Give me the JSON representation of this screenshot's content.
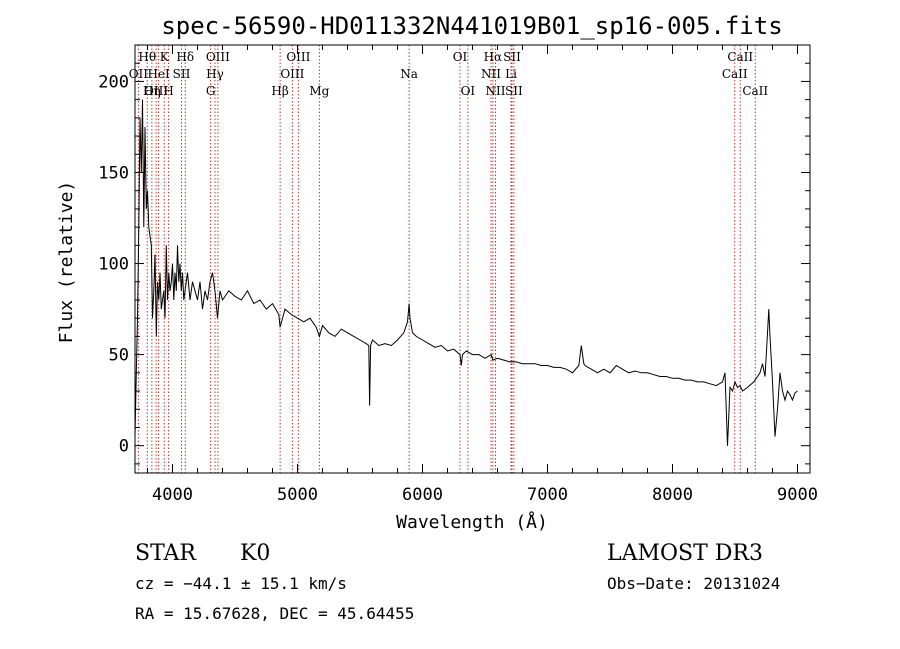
{
  "chart_data": {
    "type": "line",
    "title": "spec-56590-HD011332N441019B01_sp16-005.fits",
    "xlabel": "Wavelength (Å)",
    "ylabel": "Flux (relative)",
    "xlim": [
      3700,
      9100
    ],
    "ylim": [
      -15,
      220
    ],
    "x_ticks": [
      4000,
      5000,
      6000,
      7000,
      8000,
      9000
    ],
    "y_ticks": [
      0,
      50,
      100,
      150,
      200
    ],
    "series": [
      {
        "name": "spectrum",
        "x": [
          3700,
          3710,
          3720,
          3730,
          3740,
          3750,
          3760,
          3770,
          3780,
          3790,
          3800,
          3810,
          3820,
          3830,
          3840,
          3850,
          3860,
          3870,
          3880,
          3890,
          3900,
          3910,
          3920,
          3930,
          3940,
          3950,
          3960,
          3970,
          3980,
          3990,
          4000,
          4010,
          4020,
          4030,
          4040,
          4050,
          4060,
          4070,
          4080,
          4090,
          4100,
          4120,
          4140,
          4160,
          4180,
          4200,
          4220,
          4240,
          4260,
          4280,
          4300,
          4320,
          4340,
          4360,
          4380,
          4400,
          4450,
          4500,
          4550,
          4600,
          4650,
          4700,
          4750,
          4800,
          4850,
          4861,
          4900,
          4950,
          5000,
          5050,
          5100,
          5150,
          5175,
          5200,
          5250,
          5300,
          5350,
          5400,
          5450,
          5500,
          5550,
          5570,
          5577,
          5585,
          5600,
          5650,
          5700,
          5750,
          5800,
          5850,
          5880,
          5893,
          5900,
          5920,
          5950,
          6000,
          6050,
          6100,
          6150,
          6200,
          6250,
          6300,
          6310,
          6320,
          6350,
          6400,
          6450,
          6500,
          6550,
          6563,
          6600,
          6650,
          6700,
          6750,
          6800,
          6850,
          6900,
          6950,
          7000,
          7050,
          7100,
          7150,
          7200,
          7250,
          7270,
          7290,
          7300,
          7350,
          7400,
          7450,
          7500,
          7550,
          7600,
          7650,
          7700,
          7750,
          7800,
          7850,
          7900,
          7950,
          8000,
          8050,
          8100,
          8150,
          8200,
          8250,
          8300,
          8350,
          8400,
          8420,
          8440,
          8460,
          8480,
          8500,
          8520,
          8540,
          8560,
          8600,
          8650,
          8700,
          8720,
          8740,
          8750,
          8770,
          8780,
          8800,
          8820,
          8840,
          8860,
          8880,
          8900,
          8920,
          8940,
          8960,
          8980,
          9000
        ],
        "y": [
          5,
          40,
          70,
          120,
          180,
          150,
          190,
          120,
          175,
          130,
          140,
          120,
          115,
          110,
          70,
          85,
          105,
          60,
          90,
          80,
          95,
          75,
          80,
          85,
          70,
          110,
          80,
          95,
          85,
          90,
          100,
          80,
          95,
          85,
          110,
          90,
          100,
          85,
          95,
          80,
          85,
          95,
          80,
          90,
          85,
          80,
          90,
          75,
          85,
          80,
          90,
          95,
          85,
          70,
          85,
          80,
          85,
          82,
          80,
          85,
          78,
          80,
          75,
          78,
          72,
          65,
          75,
          72,
          70,
          68,
          70,
          65,
          60,
          66,
          62,
          60,
          64,
          62,
          60,
          58,
          56,
          55,
          22,
          55,
          58,
          55,
          56,
          55,
          58,
          62,
          68,
          78,
          70,
          62,
          60,
          58,
          56,
          54,
          55,
          52,
          53,
          50,
          44,
          50,
          52,
          50,
          50,
          48,
          50,
          47,
          48,
          47,
          46,
          46,
          45,
          45,
          45,
          44,
          44,
          43,
          43,
          42,
          40,
          44,
          55,
          45,
          44,
          42,
          40,
          42,
          40,
          44,
          42,
          40,
          41,
          40,
          40,
          39,
          38,
          38,
          37,
          37,
          36,
          36,
          35,
          35,
          34,
          33,
          35,
          40,
          0,
          32,
          30,
          35,
          32,
          33,
          30,
          32,
          35,
          40,
          45,
          38,
          50,
          75,
          60,
          35,
          5,
          20,
          40,
          30,
          25,
          30,
          28,
          25,
          29,
          30
        ]
      }
    ],
    "spectral_lines": [
      {
        "label": "Hθ",
        "wavelength": 3798,
        "row": 0
      },
      {
        "label": "OII",
        "wavelength": 3727,
        "row": 1
      },
      {
        "label": "OIII",
        "wavelength": 3869,
        "row": 2
      },
      {
        "label": "K",
        "wavelength": 3934,
        "row": 0
      },
      {
        "label": "HeI",
        "wavelength": 3889,
        "row": 1
      },
      {
        "label": "Hη",
        "wavelength": 3835,
        "row": 2
      },
      {
        "label": "H",
        "wavelength": 3969,
        "row": 2
      },
      {
        "label": "SII",
        "wavelength": 4072,
        "row": 1
      },
      {
        "label": "Hδ",
        "wavelength": 4102,
        "row": 0
      },
      {
        "label": "OIII",
        "wavelength": 4363,
        "row": 0
      },
      {
        "label": "Hγ",
        "wavelength": 4340,
        "row": 1
      },
      {
        "label": "G",
        "wavelength": 4305,
        "row": 2
      },
      {
        "label": "OIII",
        "wavelength": 5007,
        "row": 0
      },
      {
        "label": "OIII",
        "wavelength": 4959,
        "row": 1
      },
      {
        "label": "Hβ",
        "wavelength": 4861,
        "row": 2
      },
      {
        "label": "Mg",
        "wavelength": 5175,
        "row": 2
      },
      {
        "label": "Na",
        "wavelength": 5893,
        "row": 1
      },
      {
        "label": "OI",
        "wavelength": 6300,
        "row": 0
      },
      {
        "label": "OI",
        "wavelength": 6363,
        "row": 2
      },
      {
        "label": "Hα",
        "wavelength": 6563,
        "row": 0
      },
      {
        "label": "SII",
        "wavelength": 6716,
        "row": 0
      },
      {
        "label": "NII",
        "wavelength": 6548,
        "row": 1
      },
      {
        "label": "Li",
        "wavelength": 6708,
        "row": 1
      },
      {
        "label": "NII",
        "wavelength": 6584,
        "row": 2
      },
      {
        "label": "SII",
        "wavelength": 6731,
        "row": 2
      },
      {
        "label": "CaII",
        "wavelength": 8542,
        "row": 0
      },
      {
        "label": "CaII",
        "wavelength": 8498,
        "row": 1
      },
      {
        "label": "CaII",
        "wavelength": 8662,
        "row": 2
      }
    ],
    "colors": {
      "spectrum": "#000000",
      "lines": "#c0392b"
    }
  },
  "info": {
    "class_label": "STAR",
    "subclass_label": "K0",
    "survey_label": "LAMOST DR3",
    "cz_text": "cz = −44.1 ± 15.1 km/s",
    "obs_date_text": "Obs−Date: 20131024",
    "coords_text": "RA =  15.67628, DEC =  45.64455"
  }
}
